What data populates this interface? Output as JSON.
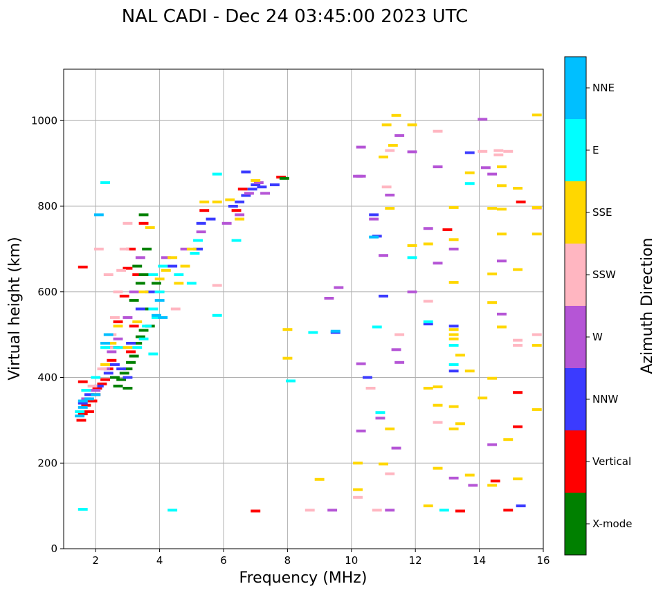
{
  "chart_data": {
    "type": "scatter",
    "title": "NAL CADI - Dec 24 03:45:00 2023 UTC",
    "xlabel": "Frequency (MHz)",
    "ylabel": "Virtual height (km)",
    "xlim": [
      1,
      16
    ],
    "ylim": [
      0,
      1120
    ],
    "xticks": [
      2,
      4,
      6,
      8,
      10,
      12,
      14,
      16
    ],
    "yticks": [
      0,
      200,
      400,
      600,
      800,
      1000
    ],
    "grid": true,
    "colorbar": {
      "label": "Azimuth Direction",
      "categories": [
        {
          "name": "X-mode",
          "color": "#008000"
        },
        {
          "name": "Vertical",
          "color": "#ff0000"
        },
        {
          "name": "NNW",
          "color": "#3b3bff"
        },
        {
          "name": "W",
          "color": "#b555d6"
        },
        {
          "name": "SSW",
          "color": "#ffb6c1"
        },
        {
          "name": "SSE",
          "color": "#ffd700"
        },
        {
          "name": "E",
          "color": "#00ffff"
        },
        {
          "name": "NNE",
          "color": "#00bfff"
        }
      ]
    },
    "segment_width_mhz": 0.3,
    "series": [
      {
        "name": "Vertical",
        "points": [
          [
            1.55,
            300
          ],
          [
            1.6,
            315
          ],
          [
            1.7,
            335
          ],
          [
            1.8,
            320
          ],
          [
            1.9,
            345
          ],
          [
            2.0,
            360
          ],
          [
            2.05,
            375
          ],
          [
            2.2,
            385
          ],
          [
            2.3,
            395
          ],
          [
            1.6,
            390
          ],
          [
            2.4,
            420
          ],
          [
            2.5,
            440
          ],
          [
            2.6,
            470
          ],
          [
            2.7,
            530
          ],
          [
            2.9,
            590
          ],
          [
            3.0,
            655
          ],
          [
            3.1,
            700
          ],
          [
            3.3,
            640
          ],
          [
            3.5,
            760
          ],
          [
            3.1,
            460
          ],
          [
            3.2,
            520
          ],
          [
            5.4,
            790
          ],
          [
            6.4,
            790
          ],
          [
            6.6,
            840
          ],
          [
            7.0,
            88
          ],
          [
            7.8,
            868
          ],
          [
            13.0,
            745
          ],
          [
            13.4,
            88
          ],
          [
            14.5,
            158
          ],
          [
            14.9,
            90
          ],
          [
            15.2,
            365
          ],
          [
            15.2,
            285
          ],
          [
            15.3,
            810
          ],
          [
            1.6,
            658
          ]
        ]
      },
      {
        "name": "X-mode",
        "points": [
          [
            2.7,
            380
          ],
          [
            2.8,
            395
          ],
          [
            2.9,
            410
          ],
          [
            3.0,
            420
          ],
          [
            3.1,
            435
          ],
          [
            3.0,
            375
          ],
          [
            3.2,
            450
          ],
          [
            3.3,
            480
          ],
          [
            3.4,
            495
          ],
          [
            3.5,
            510
          ],
          [
            3.6,
            560
          ],
          [
            3.2,
            580
          ],
          [
            3.4,
            620
          ],
          [
            3.5,
            640
          ],
          [
            3.3,
            660
          ],
          [
            3.6,
            700
          ],
          [
            3.5,
            780
          ],
          [
            2.6,
            400
          ],
          [
            3.7,
            520
          ],
          [
            3.9,
            620
          ],
          [
            7.9,
            865
          ]
        ]
      },
      {
        "name": "NNW",
        "points": [
          [
            1.6,
            340
          ],
          [
            1.8,
            360
          ],
          [
            2.1,
            380
          ],
          [
            2.4,
            410
          ],
          [
            2.6,
            430
          ],
          [
            2.8,
            420
          ],
          [
            3.0,
            400
          ],
          [
            3.1,
            480
          ],
          [
            3.4,
            560
          ],
          [
            3.7,
            600
          ],
          [
            4.4,
            660
          ],
          [
            5.2,
            700
          ],
          [
            5.3,
            760
          ],
          [
            5.6,
            770
          ],
          [
            6.3,
            800
          ],
          [
            6.5,
            810
          ],
          [
            6.7,
            825
          ],
          [
            6.9,
            840
          ],
          [
            7.0,
            850
          ],
          [
            7.2,
            845
          ],
          [
            7.6,
            850
          ],
          [
            9.5,
            505
          ],
          [
            10.5,
            400
          ],
          [
            10.7,
            780
          ],
          [
            10.8,
            730
          ],
          [
            11.0,
            590
          ],
          [
            12.4,
            525
          ],
          [
            13.2,
            520
          ],
          [
            13.2,
            415
          ],
          [
            13.7,
            925
          ],
          [
            15.3,
            100
          ],
          [
            6.7,
            880
          ]
        ]
      },
      {
        "name": "W",
        "points": [
          [
            1.7,
            350
          ],
          [
            2.0,
            370
          ],
          [
            2.3,
            420
          ],
          [
            2.5,
            460
          ],
          [
            2.7,
            490
          ],
          [
            3.0,
            540
          ],
          [
            3.2,
            600
          ],
          [
            3.4,
            680
          ],
          [
            4.2,
            680
          ],
          [
            4.8,
            700
          ],
          [
            5.3,
            740
          ],
          [
            6.1,
            760
          ],
          [
            6.5,
            780
          ],
          [
            6.8,
            830
          ],
          [
            7.1,
            855
          ],
          [
            7.3,
            830
          ],
          [
            9.3,
            585
          ],
          [
            9.4,
            90
          ],
          [
            9.6,
            610
          ],
          [
            10.3,
            870
          ],
          [
            10.3,
            938
          ],
          [
            10.3,
            432
          ],
          [
            10.3,
            275
          ],
          [
            10.7,
            770
          ],
          [
            11.0,
            685
          ],
          [
            11.2,
            826
          ],
          [
            11.2,
            90
          ],
          [
            11.4,
            235
          ],
          [
            11.4,
            465
          ],
          [
            11.5,
            965
          ],
          [
            11.5,
            435
          ],
          [
            11.9,
            927
          ],
          [
            11.9,
            600
          ],
          [
            12.4,
            748
          ],
          [
            12.7,
            892
          ],
          [
            12.7,
            667
          ],
          [
            13.2,
            700
          ],
          [
            13.2,
            165
          ],
          [
            13.8,
            148
          ],
          [
            14.1,
            1003
          ],
          [
            14.2,
            890
          ],
          [
            14.4,
            243
          ],
          [
            14.4,
            875
          ],
          [
            14.7,
            548
          ],
          [
            14.7,
            672
          ],
          [
            10.9,
            305
          ],
          [
            10.2,
            870
          ]
        ]
      },
      {
        "name": "SSW",
        "points": [
          [
            1.9,
            380
          ],
          [
            2.2,
            420
          ],
          [
            2.4,
            470
          ],
          [
            2.5,
            500
          ],
          [
            2.6,
            540
          ],
          [
            2.7,
            600
          ],
          [
            2.8,
            650
          ],
          [
            2.9,
            700
          ],
          [
            3.0,
            760
          ],
          [
            2.1,
            700
          ],
          [
            2.4,
            640
          ],
          [
            4.5,
            560
          ],
          [
            8.7,
            90
          ],
          [
            10.2,
            120
          ],
          [
            10.6,
            375
          ],
          [
            10.8,
            90
          ],
          [
            11.1,
            845
          ],
          [
            11.2,
            930
          ],
          [
            11.2,
            175
          ],
          [
            11.5,
            500
          ],
          [
            12.4,
            578
          ],
          [
            12.7,
            975
          ],
          [
            12.7,
            295
          ],
          [
            14.1,
            928
          ],
          [
            14.6,
            930
          ],
          [
            14.6,
            920
          ],
          [
            14.9,
            928
          ],
          [
            15.2,
            487
          ],
          [
            15.2,
            475
          ],
          [
            15.8,
            500
          ],
          [
            15.8,
            795
          ],
          [
            5.8,
            615
          ]
        ]
      },
      {
        "name": "SSE",
        "points": [
          [
            2.3,
            430
          ],
          [
            2.5,
            480
          ],
          [
            2.7,
            520
          ],
          [
            3.0,
            470
          ],
          [
            3.3,
            530
          ],
          [
            3.5,
            600
          ],
          [
            3.7,
            750
          ],
          [
            4.0,
            630
          ],
          [
            4.2,
            650
          ],
          [
            4.4,
            680
          ],
          [
            4.6,
            620
          ],
          [
            4.8,
            660
          ],
          [
            5.0,
            700
          ],
          [
            5.4,
            810
          ],
          [
            5.8,
            810
          ],
          [
            6.2,
            815
          ],
          [
            6.5,
            770
          ],
          [
            7.0,
            860
          ],
          [
            8.0,
            445
          ],
          [
            8.0,
            512
          ],
          [
            9.0,
            162
          ],
          [
            10.2,
            200
          ],
          [
            10.2,
            138
          ],
          [
            11.0,
            198
          ],
          [
            11.0,
            915
          ],
          [
            11.1,
            990
          ],
          [
            11.3,
            942
          ],
          [
            11.4,
            1012
          ],
          [
            11.2,
            280
          ],
          [
            11.2,
            795
          ],
          [
            11.9,
            708
          ],
          [
            11.9,
            990
          ],
          [
            12.4,
            100
          ],
          [
            12.4,
            712
          ],
          [
            12.4,
            375
          ],
          [
            12.7,
            378
          ],
          [
            12.7,
            335
          ],
          [
            12.7,
            188
          ],
          [
            13.2,
            797
          ],
          [
            13.2,
            722
          ],
          [
            13.2,
            622
          ],
          [
            13.2,
            512
          ],
          [
            13.2,
            500
          ],
          [
            13.2,
            490
          ],
          [
            13.2,
            332
          ],
          [
            13.2,
            280
          ],
          [
            13.4,
            452
          ],
          [
            13.4,
            292
          ],
          [
            13.7,
            172
          ],
          [
            13.7,
            415
          ],
          [
            13.7,
            878
          ],
          [
            14.1,
            352
          ],
          [
            14.4,
            148
          ],
          [
            14.4,
            398
          ],
          [
            14.4,
            795
          ],
          [
            14.4,
            642
          ],
          [
            14.4,
            575
          ],
          [
            14.7,
            892
          ],
          [
            14.7,
            848
          ],
          [
            14.7,
            793
          ],
          [
            14.7,
            735
          ],
          [
            14.7,
            518
          ],
          [
            14.9,
            255
          ],
          [
            15.2,
            842
          ],
          [
            15.2,
            652
          ],
          [
            15.2,
            163
          ],
          [
            15.8,
            1013
          ],
          [
            15.8,
            797
          ],
          [
            15.8,
            735
          ],
          [
            15.8,
            475
          ],
          [
            15.8,
            325
          ]
        ]
      },
      {
        "name": "E",
        "points": [
          [
            1.5,
            320
          ],
          [
            1.7,
            370
          ],
          [
            2.0,
            400
          ],
          [
            2.3,
            470
          ],
          [
            2.7,
            470
          ],
          [
            3.3,
            470
          ],
          [
            3.5,
            490
          ],
          [
            3.6,
            520
          ],
          [
            3.8,
            560
          ],
          [
            4.0,
            600
          ],
          [
            3.8,
            640
          ],
          [
            4.1,
            660
          ],
          [
            3.9,
            540
          ],
          [
            4.6,
            640
          ],
          [
            5.0,
            620
          ],
          [
            5.1,
            690
          ],
          [
            5.2,
            720
          ],
          [
            5.8,
            875
          ],
          [
            6.4,
            720
          ],
          [
            5.8,
            545
          ],
          [
            8.1,
            392
          ],
          [
            8.8,
            505
          ],
          [
            10.8,
            518
          ],
          [
            10.9,
            318
          ],
          [
            12.4,
            530
          ],
          [
            12.9,
            90
          ],
          [
            13.2,
            475
          ],
          [
            13.2,
            430
          ],
          [
            13.7,
            853
          ],
          [
            11.9,
            680
          ],
          [
            3.8,
            455
          ],
          [
            2.3,
            855
          ],
          [
            4.4,
            90
          ],
          [
            1.6,
            92
          ]
        ]
      },
      {
        "name": "NNE",
        "points": [
          [
            1.5,
            310
          ],
          [
            1.6,
            330
          ],
          [
            1.8,
            350
          ],
          [
            2.0,
            360
          ],
          [
            2.3,
            480
          ],
          [
            2.4,
            500
          ],
          [
            3.9,
            545
          ],
          [
            4.0,
            580
          ],
          [
            4.1,
            540
          ],
          [
            9.5,
            508
          ],
          [
            10.7,
            728
          ],
          [
            1.6,
            345
          ],
          [
            2.1,
            780
          ]
        ]
      }
    ]
  }
}
